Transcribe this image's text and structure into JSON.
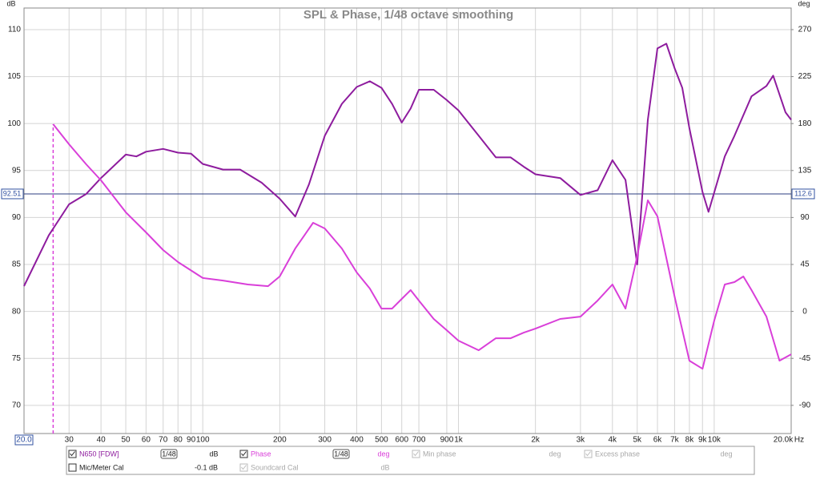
{
  "chart_data": {
    "type": "line",
    "title": "SPL & Phase, 1/48 octave smoothing",
    "x_label": "Hz",
    "y_label": "dB",
    "y2_label": "deg",
    "log_x": true,
    "grid": true,
    "xlim": [
      20,
      20000
    ],
    "ylim": [
      67,
      112.3
    ],
    "y2lim": [
      -117,
      290.7
    ],
    "xticks": [
      {
        "value": 20,
        "label": "20.0"
      },
      30,
      40,
      50,
      60,
      70,
      80,
      90,
      100,
      200,
      300,
      400,
      500,
      600,
      700,
      900,
      {
        "value": 1000,
        "label": "1k"
      },
      {
        "value": 2000,
        "label": "2k"
      },
      {
        "value": 3000,
        "label": "3k"
      },
      {
        "value": 4000,
        "label": "4k"
      },
      {
        "value": 5000,
        "label": "5k"
      },
      {
        "value": 6000,
        "label": "6k"
      },
      {
        "value": 7000,
        "label": "7k"
      },
      {
        "value": 8000,
        "label": "8k"
      },
      {
        "value": 9000,
        "label": "9k"
      },
      {
        "value": 10000,
        "label": "10k"
      },
      {
        "value": 20000,
        "label": "20.0k"
      }
    ],
    "yticks": [
      70,
      75,
      80,
      85,
      90,
      95,
      100,
      105,
      110
    ],
    "y2ticks": [
      -90,
      -45,
      0,
      45,
      90,
      135,
      180,
      225,
      270
    ],
    "cursor_y": {
      "value": 92.51,
      "label": "92.51"
    },
    "cursor_y2": 112.6,
    "series": [
      {
        "name": "N650 [FDW]",
        "color": "#8e1c9e",
        "x": [
          20,
          25,
          30,
          35,
          40,
          50,
          55,
          60,
          70,
          80,
          90,
          100,
          120,
          140,
          170,
          200,
          230,
          260,
          300,
          350,
          400,
          450,
          500,
          550,
          600,
          650,
          700,
          800,
          900,
          1000,
          1200,
          1400,
          1600,
          1800,
          2000,
          2500,
          3000,
          3500,
          4000,
          4500,
          5000,
          5500,
          6000,
          6500,
          7000,
          7500,
          8000,
          9000,
          9500,
          11000,
          12000,
          14000,
          16000,
          17000,
          19000,
          20000
        ],
        "values": [
          82.7,
          88.1,
          91.4,
          92.5,
          94.2,
          96.7,
          96.5,
          97,
          97.3,
          96.9,
          96.8,
          95.7,
          95.1,
          95.1,
          93.7,
          92.0,
          90.1,
          93.5,
          98.7,
          102.1,
          103.9,
          104.5,
          103.8,
          102.1,
          100.1,
          101.6,
          103.6,
          103.6,
          102.5,
          101.4,
          98.7,
          96.4,
          96.4,
          95.4,
          94.6,
          94.2,
          92.4,
          92.9,
          96.1,
          94.0,
          85.0,
          100.4,
          108.0,
          108.5,
          105.9,
          103.8,
          99.5,
          92.7,
          90.6,
          96.5,
          98.7,
          102.9,
          104.0,
          105.1,
          101.2,
          100.4
        ]
      },
      {
        "name": "Phase",
        "color": "#d93fd9",
        "axis": "y2",
        "x": [
          26,
          30,
          35,
          40,
          50,
          60,
          70,
          80,
          100,
          120,
          150,
          180,
          200,
          230,
          270,
          300,
          350,
          400,
          450,
          500,
          550,
          600,
          650,
          700,
          800,
          900,
          1000,
          1200,
          1400,
          1600,
          1800,
          2000,
          2500,
          3000,
          3500,
          4000,
          4500,
          5000,
          5500,
          6000,
          7000,
          8000,
          9000,
          10000,
          11000,
          12000,
          13000,
          14000,
          16000,
          18000,
          20000
        ],
        "values": [
          179.4,
          160.2,
          141,
          125.6,
          95,
          75.7,
          58.8,
          47.3,
          32,
          29.6,
          25.8,
          24.2,
          33.5,
          60.3,
          84.9,
          79.5,
          60.3,
          37.3,
          22,
          2.7,
          2.7,
          12,
          20.4,
          10.4,
          -7.2,
          -18,
          -28,
          -37.2,
          -25.7,
          -25.7,
          -20.3,
          -16.5,
          -7.2,
          -5,
          10.4,
          25.8,
          2.7,
          52.7,
          106.4,
          91.1,
          14.3,
          -47.2,
          -55,
          -8.8,
          25.8,
          28.1,
          33.5,
          20.4,
          -5,
          -47.2,
          -41.1
        ]
      }
    ]
  },
  "controls": {
    "spl_smoothing": "1/48",
    "spl_unit": "dB",
    "phase_smoothing": "1/48",
    "phase_unit": "deg",
    "min_phase": "Min phase",
    "min_phase_unit": "deg",
    "excess_phase": "Excess phase",
    "excess_phase_unit": "deg",
    "mic_cal": "Mic/Meter Cal",
    "mic_cal_value": "-0.1 dB",
    "soundcard_cal": "Soundcard Cal",
    "soundcard_cal_unit": "dB"
  }
}
